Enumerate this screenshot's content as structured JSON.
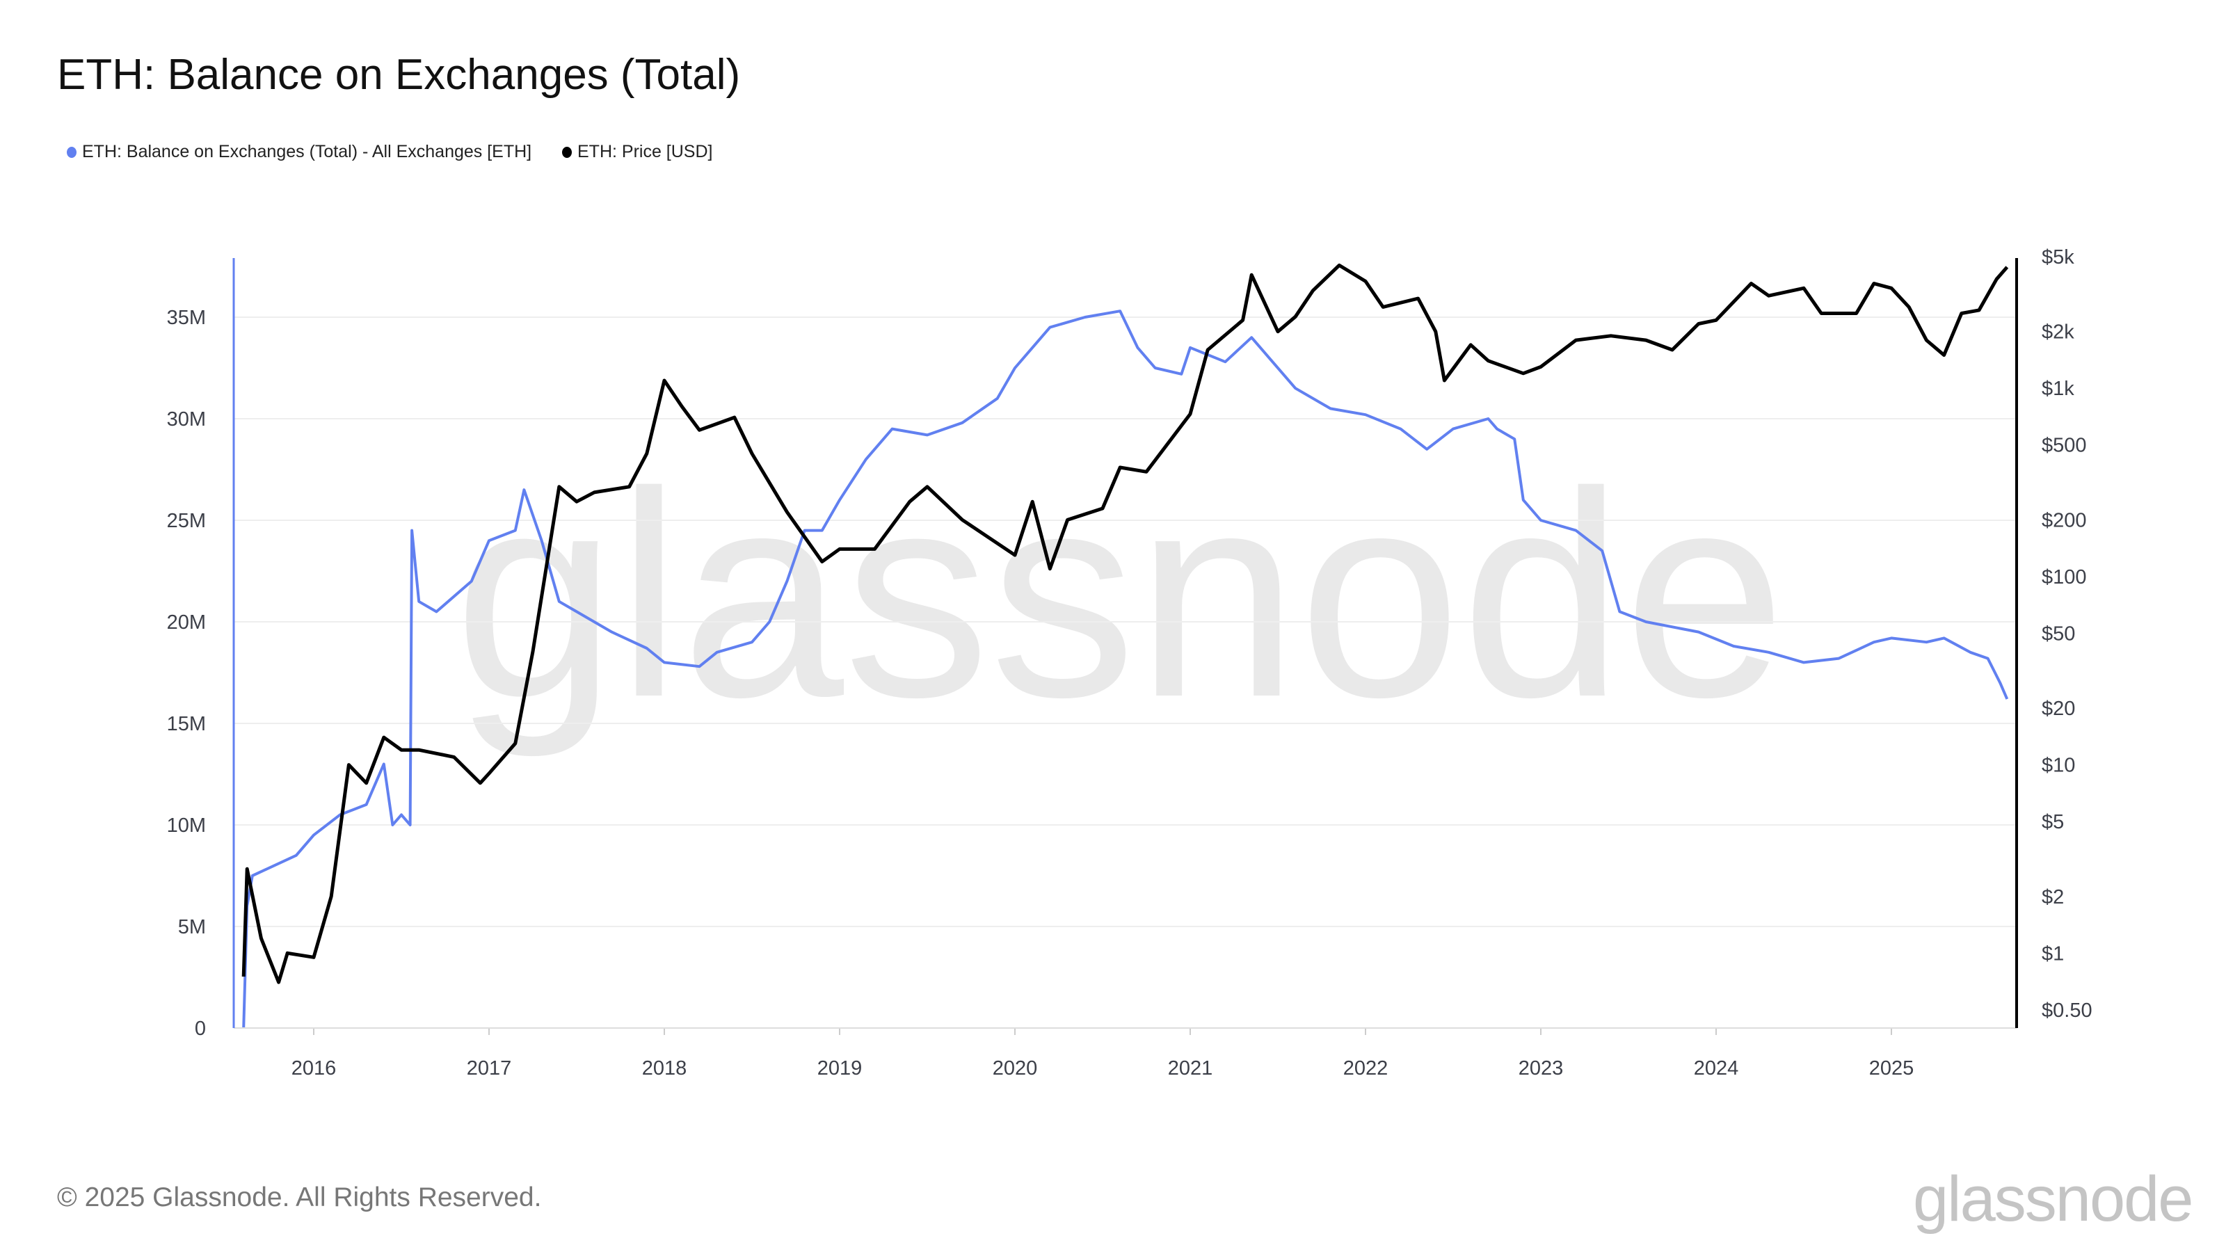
{
  "chart_data": {
    "type": "line",
    "title": "ETH: Balance on Exchanges (Total)",
    "footer": "© 2025 Glassnode. All Rights Reserved.",
    "logo": "glassnode",
    "watermark": "glassnode",
    "legend_placement": "top-left",
    "grid": true,
    "x_ticks": [
      "2016",
      "2017",
      "2018",
      "2019",
      "2020",
      "2021",
      "2022",
      "2023",
      "2024",
      "2025"
    ],
    "x_range": [
      2015.55,
      2025.7
    ],
    "y_left": {
      "ticks": [
        "0",
        "5M",
        "10M",
        "15M",
        "20M",
        "25M",
        "30M",
        "35M"
      ],
      "range": [
        0,
        38
      ],
      "scale": "linear"
    },
    "y_right": {
      "ticks": [
        "$5k",
        "$2k",
        "$1k",
        "$500",
        "$200",
        "$100",
        "$50",
        "$20",
        "$10",
        "$5",
        "$2",
        "$1",
        "$0.50"
      ],
      "tick_values": [
        5000,
        2000,
        1000,
        500,
        200,
        100,
        50,
        20,
        10,
        5,
        2,
        1,
        0.5
      ],
      "range": [
        0.5,
        5000
      ],
      "scale": "log"
    },
    "series": [
      {
        "name": "ETH: Balance on Exchanges (Total) - All Exchanges [ETH]",
        "color": "#6180f0",
        "axis": "left",
        "unit": "M ETH",
        "x": [
          2015.6,
          2015.62,
          2015.65,
          2015.9,
          2016.0,
          2016.15,
          2016.3,
          2016.4,
          2016.45,
          2016.5,
          2016.55,
          2016.56,
          2016.6,
          2016.7,
          2016.9,
          2017.0,
          2017.15,
          2017.2,
          2017.3,
          2017.4,
          2017.5,
          2017.7,
          2017.9,
          2018.0,
          2018.2,
          2018.3,
          2018.5,
          2018.6,
          2018.7,
          2018.8,
          2018.9,
          2019.0,
          2019.15,
          2019.3,
          2019.5,
          2019.7,
          2019.9,
          2020.0,
          2020.2,
          2020.4,
          2020.6,
          2020.7,
          2020.8,
          2020.95,
          2021.0,
          2021.2,
          2021.35,
          2021.45,
          2021.6,
          2021.8,
          2022.0,
          2022.2,
          2022.35,
          2022.5,
          2022.7,
          2022.75,
          2022.85,
          2022.9,
          2023.0,
          2023.2,
          2023.35,
          2023.45,
          2023.6,
          2023.9,
          2024.1,
          2024.3,
          2024.5,
          2024.7,
          2024.9,
          2025.0,
          2025.2,
          2025.3,
          2025.45,
          2025.55,
          2025.62,
          2025.66
        ],
        "y": [
          0,
          6,
          7.5,
          8.5,
          9.5,
          10.5,
          11,
          13,
          10,
          10.5,
          10,
          24.5,
          21,
          20.5,
          22,
          24,
          24.5,
          26.5,
          24,
          21,
          20.5,
          19.5,
          18.7,
          18,
          17.8,
          18.5,
          19,
          20,
          22,
          24.5,
          24.5,
          26,
          28,
          29.5,
          29.2,
          29.8,
          31,
          32.5,
          34.5,
          35,
          35.3,
          33.5,
          32.5,
          32.2,
          33.5,
          32.8,
          34,
          33,
          31.5,
          30.5,
          30.2,
          29.5,
          28.5,
          29.5,
          30,
          29.5,
          29,
          26,
          25,
          24.5,
          23.5,
          20.5,
          20,
          19.5,
          18.8,
          18.5,
          18,
          18.2,
          19,
          19.2,
          19,
          19.2,
          18.5,
          18.2,
          17,
          16.2
        ]
      },
      {
        "name": "ETH: Price [USD]",
        "color": "#000000",
        "axis": "right",
        "unit": "USD",
        "x": [
          2015.6,
          2015.62,
          2015.7,
          2015.8,
          2015.85,
          2016.0,
          2016.1,
          2016.2,
          2016.3,
          2016.4,
          2016.5,
          2016.6,
          2016.8,
          2016.95,
          2017.0,
          2017.15,
          2017.25,
          2017.4,
          2017.5,
          2017.6,
          2017.8,
          2017.9,
          2018.0,
          2018.1,
          2018.2,
          2018.4,
          2018.5,
          2018.7,
          2018.9,
          2019.0,
          2019.2,
          2019.4,
          2019.5,
          2019.7,
          2019.9,
          2020.0,
          2020.1,
          2020.2,
          2020.3,
          2020.5,
          2020.6,
          2020.75,
          2020.9,
          2021.0,
          2021.1,
          2021.3,
          2021.35,
          2021.5,
          2021.6,
          2021.7,
          2021.85,
          2022.0,
          2022.1,
          2022.3,
          2022.4,
          2022.45,
          2022.6,
          2022.7,
          2022.9,
          2023.0,
          2023.2,
          2023.4,
          2023.6,
          2023.75,
          2023.9,
          2024.0,
          2024.2,
          2024.3,
          2024.5,
          2024.6,
          2024.8,
          2024.9,
          2025.0,
          2025.1,
          2025.2,
          2025.3,
          2025.4,
          2025.5,
          2025.6,
          2025.66
        ],
        "y": [
          0.75,
          2.8,
          1.2,
          0.7,
          1.0,
          0.95,
          2,
          10,
          8,
          14,
          12,
          12,
          11,
          8,
          9,
          13,
          40,
          300,
          250,
          280,
          300,
          450,
          1100,
          800,
          600,
          700,
          450,
          220,
          120,
          140,
          140,
          250,
          300,
          200,
          150,
          130,
          250,
          110,
          200,
          230,
          380,
          360,
          550,
          730,
          1600,
          2300,
          4000,
          2000,
          2400,
          3300,
          4500,
          3700,
          2700,
          3000,
          2000,
          1100,
          1700,
          1400,
          1200,
          1300,
          1800,
          1900,
          1800,
          1600,
          2200,
          2300,
          3600,
          3100,
          3400,
          2500,
          2500,
          3600,
          3400,
          2700,
          1800,
          1500,
          2500,
          2600,
          3800,
          4400
        ]
      }
    ]
  }
}
